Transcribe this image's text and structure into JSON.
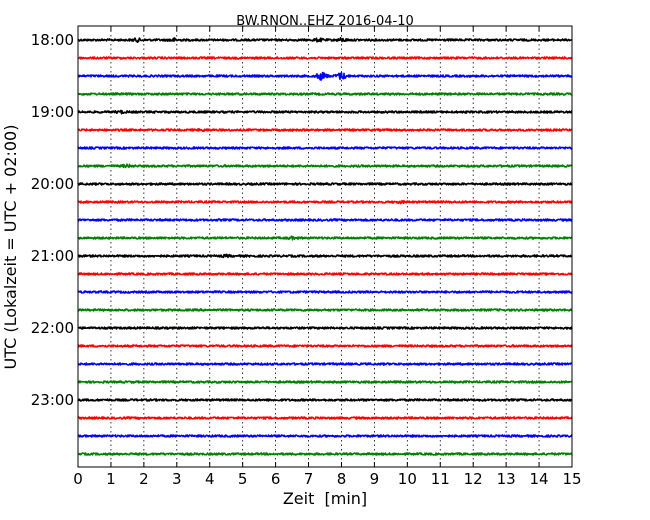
{
  "chart_data": {
    "type": "line",
    "title": "BW.RNON..EHZ 2016-04-10",
    "xlabel": "Zeit  [min]",
    "ylabel": "UTC (Lokalzeit = UTC + 02:00)",
    "xlim": [
      0,
      15
    ],
    "x_ticks": [
      "0",
      "1",
      "2",
      "3",
      "4",
      "5",
      "6",
      "7",
      "8",
      "9",
      "10",
      "11",
      "12",
      "13",
      "14",
      "15"
    ],
    "y_tick_labels": [
      "18:00",
      "19:00",
      "20:00",
      "21:00",
      "22:00",
      "23:00"
    ],
    "grid": "vertical-dotted",
    "trace_colors": [
      "#000000",
      "#ff0000",
      "#0000ff",
      "#008000"
    ],
    "traces": [
      {
        "start": "18:00",
        "events": [
          {
            "x": 1.8,
            "amp": 1.2
          },
          {
            "x": 2.9,
            "amp": 1.3
          },
          {
            "x": 7.3,
            "amp": 1.1
          },
          {
            "x": 8.0,
            "amp": 1.3
          }
        ]
      },
      {
        "start": "18:15",
        "events": []
      },
      {
        "start": "18:30",
        "events": [
          {
            "x": 7.4,
            "amp": 3.5
          },
          {
            "x": 8.0,
            "amp": 3.0
          }
        ]
      },
      {
        "start": "18:45",
        "events": []
      },
      {
        "start": "19:00",
        "events": [
          {
            "x": 1.3,
            "amp": 0.8
          }
        ]
      },
      {
        "start": "19:15",
        "events": [
          {
            "x": 3.8,
            "amp": 0.6
          }
        ]
      },
      {
        "start": "19:30",
        "events": []
      },
      {
        "start": "19:45",
        "events": [
          {
            "x": 1.5,
            "amp": 1.0
          }
        ]
      },
      {
        "start": "20:00",
        "events": []
      },
      {
        "start": "20:15",
        "events": [
          {
            "x": 9.8,
            "amp": 0.6
          }
        ]
      },
      {
        "start": "20:30",
        "events": []
      },
      {
        "start": "20:45",
        "events": [
          {
            "x": 6.5,
            "amp": 0.8
          }
        ]
      },
      {
        "start": "21:00",
        "events": [
          {
            "x": 4.5,
            "amp": 0.6
          }
        ]
      },
      {
        "start": "21:15",
        "events": []
      },
      {
        "start": "21:30",
        "events": []
      },
      {
        "start": "21:45",
        "events": []
      },
      {
        "start": "22:00",
        "events": []
      },
      {
        "start": "22:15",
        "events": []
      },
      {
        "start": "22:30",
        "events": []
      },
      {
        "start": "22:45",
        "events": []
      },
      {
        "start": "23:00",
        "events": []
      },
      {
        "start": "23:15",
        "events": []
      },
      {
        "start": "23:30",
        "events": []
      },
      {
        "start": "23:45",
        "events": []
      }
    ]
  }
}
